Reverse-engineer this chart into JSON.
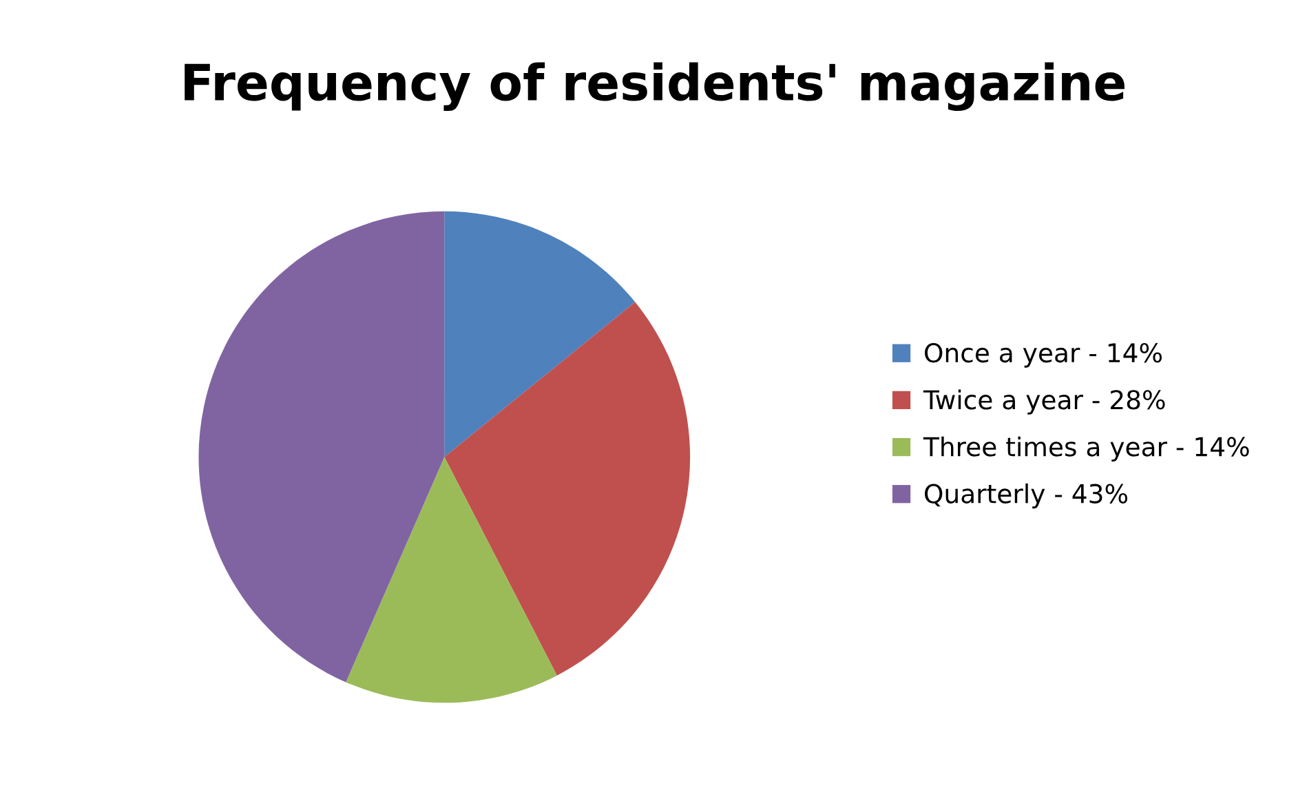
{
  "chart_data": {
    "type": "pie",
    "title": "Frequency of residents' magazine",
    "categories": [
      "Once a year - 14%",
      "Twice a year - 28%",
      "Three times a year - 14%",
      "Quarterly - 43%"
    ],
    "values": [
      14,
      28,
      14,
      43
    ],
    "colors": [
      "#4f81bd",
      "#c0504d",
      "#9bbb59",
      "#8064a2"
    ],
    "legend": "right"
  }
}
